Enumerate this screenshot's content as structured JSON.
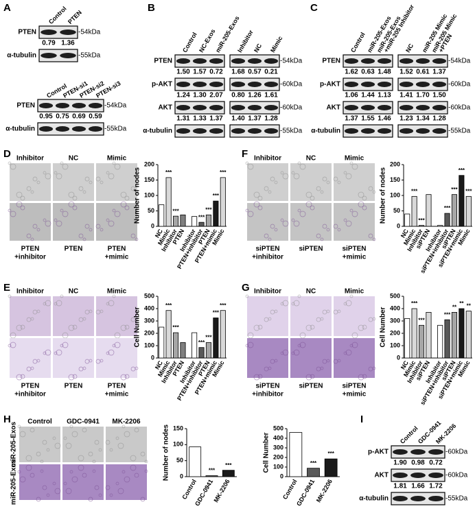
{
  "panel_labels": [
    "A",
    "B",
    "C",
    "D",
    "E",
    "F",
    "G",
    "H",
    "I"
  ],
  "blots": {
    "A1": {
      "columns": [
        [
          "Control"
        ],
        [
          "PTEN"
        ]
      ],
      "rows": [
        {
          "label": "PTEN",
          "marker": "-54kDa",
          "values": [
            "0.79",
            "1.36"
          ]
        },
        {
          "label": "α-tubulin",
          "marker": "-55kDa"
        }
      ]
    },
    "A2": {
      "columns": [
        [
          "Control"
        ],
        [
          "PTEN-si1"
        ],
        [
          "PTEN-si2"
        ],
        [
          "PTEN-si3"
        ]
      ],
      "rows": [
        {
          "label": "PTEN",
          "marker": "-54kDa",
          "values": [
            "0.95",
            "0.75",
            "0.69",
            "0.59"
          ]
        },
        {
          "label": "α-tubulin",
          "marker": "-55kDa"
        }
      ]
    },
    "B": {
      "columns": [
        [
          "Control"
        ],
        [
          "NC-Exos"
        ],
        [
          "miR-205-Exos"
        ],
        [
          "Inhibitor"
        ],
        [
          "NC"
        ],
        [
          "Mimic"
        ]
      ],
      "rows": [
        {
          "label": "PTEN",
          "marker": "-54kDa",
          "values": [
            "1.50",
            "1.57",
            "0.72",
            "1.68",
            "0.57",
            "0.21"
          ]
        },
        {
          "label": "p-AKT",
          "marker": "-60kDa",
          "values": [
            "1.24",
            "1.30",
            "2.07",
            "0.80",
            "1.26",
            "1.61"
          ]
        },
        {
          "label": "AKT",
          "marker": "-60kDa",
          "values": [
            "1.31",
            "1.33",
            "1.37",
            "1.40",
            "1.37",
            "1.28"
          ]
        },
        {
          "label": "α-tubulin",
          "marker": "-55kDa"
        }
      ]
    },
    "C": {
      "columns": [
        [
          "Control"
        ],
        [
          "miR-205-Exos"
        ],
        [
          "miR-205-Exos",
          "+miR-205 Inhibitor"
        ],
        [
          "NC"
        ],
        [
          "miR-205 Mimic"
        ],
        [
          "miR-205 Mimic",
          "+PTEN"
        ]
      ],
      "rows": [
        {
          "label": "PTEN",
          "marker": "-54kDa",
          "values": [
            "1.62",
            "0.63",
            "1.48",
            "1.52",
            "0.61",
            "1.37"
          ]
        },
        {
          "label": "p-AKT",
          "marker": "-60kDa",
          "values": [
            "1.06",
            "1.44",
            "1.13",
            "1.41",
            "1.70",
            "1.50"
          ]
        },
        {
          "label": "AKT",
          "marker": "-60kDa",
          "values": [
            "1.37",
            "1.55",
            "1.46",
            "1.23",
            "1.34",
            "1.28"
          ]
        },
        {
          "label": "α-tubulin",
          "marker": "-55kDa"
        }
      ]
    },
    "I": {
      "columns": [
        [
          "Control"
        ],
        [
          "GDC-0941"
        ],
        [
          "MK-2206"
        ]
      ],
      "rows": [
        {
          "label": "p-AKT",
          "marker": "-60kDa",
          "values": [
            "1.90",
            "0.98",
            "0.72"
          ]
        },
        {
          "label": "AKT",
          "marker": "-60kDa",
          "values": [
            "1.81",
            "1.66",
            "1.72"
          ]
        },
        {
          "label": "α-tubulin",
          "marker": "-55kDa"
        }
      ]
    }
  },
  "micrographs": {
    "D": {
      "top": [
        "Inhibitor",
        "NC",
        "Mimic"
      ],
      "bottom": [
        [
          "PTEN",
          "+inhibitor"
        ],
        [
          "PTEN"
        ],
        [
          "PTEN",
          "+mimic"
        ]
      ]
    },
    "E": {
      "top": [
        "Inhibitor",
        "NC",
        "Mimic"
      ],
      "bottom": [
        [
          "PTEN",
          "+inhibitor"
        ],
        [
          "PTEN"
        ],
        [
          "PTEN",
          "+mimic"
        ]
      ]
    },
    "F": {
      "top": [
        "Inhibitor",
        "NC",
        "Mimic"
      ],
      "bottom": [
        [
          "siPTEN",
          "+inhibitor"
        ],
        [
          "siPTEN"
        ],
        [
          "siPTEN",
          "+mimic"
        ]
      ]
    },
    "G": {
      "top": [
        "Inhibitor",
        "NC",
        "Mimic"
      ],
      "bottom": [
        [
          "siPTEN",
          "+inhibitor"
        ],
        [
          "siPTEN"
        ],
        [
          "siPTEN",
          "+mimic"
        ]
      ]
    },
    "H": {
      "top": [
        "Control",
        "GDC-0941",
        "MK-2206"
      ],
      "side": [
        "miR-205-Exos",
        "miR-205-Exos"
      ]
    }
  },
  "chart_data": [
    {
      "type": "bar",
      "ylabel": "Number of nodes",
      "categories": [
        "NC",
        "Mimic",
        "Inhibitor",
        "PTEN",
        "Inhibitor",
        "PTEN+inhibitor",
        "PTEN",
        "PTEN+mimic",
        "Mimic"
      ],
      "values": [
        70,
        158,
        33,
        37,
        32,
        13,
        37,
        82,
        158
      ],
      "colors": [
        "#ffffff",
        "#d9d9d9",
        "#a6a6a6",
        "#7f7f7f",
        "#ffffff",
        "#595959",
        "#a6a6a6",
        "#1a1a1a",
        "#d9d9d9"
      ],
      "significance": [
        null,
        "***",
        "***",
        null,
        null,
        "***",
        "***",
        "***",
        "***"
      ],
      "ylim": [
        0,
        200
      ],
      "yticks": [
        0,
        50,
        100,
        150,
        200
      ]
    },
    {
      "type": "bar",
      "ylabel": "Cell Number",
      "categories": [
        "NC",
        "Mimic",
        "Inhibitor",
        "PTEN",
        "Inhibitor",
        "PTEN+inhibitor",
        "PTEN",
        "PTEN+mimic",
        "Mimic"
      ],
      "values": [
        250,
        385,
        205,
        125,
        205,
        85,
        125,
        325,
        385
      ],
      "colors": [
        "#ffffff",
        "#d9d9d9",
        "#a6a6a6",
        "#7f7f7f",
        "#ffffff",
        "#595959",
        "#a6a6a6",
        "#1a1a1a",
        "#d9d9d9"
      ],
      "significance": [
        null,
        "***",
        "***",
        null,
        null,
        "***",
        "***",
        "***",
        "***"
      ],
      "ylim": [
        0,
        500
      ],
      "yticks": [
        0,
        100,
        200,
        300,
        400,
        500
      ]
    },
    {
      "type": "bar",
      "ylabel": "Number of nodes",
      "categories": [
        "NC",
        "Mimic",
        "Inhibitor",
        "siPTEN",
        "Inhibitor",
        "siPTEN+inhibitor",
        "siPTEN",
        "siPTEN+mimic",
        "Mimic"
      ],
      "values": [
        40,
        97,
        3,
        103,
        3,
        42,
        103,
        165,
        97
      ],
      "colors": [
        "#ffffff",
        "#d9d9d9",
        "#a6a6a6",
        "#d9d9d9",
        "#ffffff",
        "#595959",
        "#a6a6a6",
        "#1a1a1a",
        "#d9d9d9"
      ],
      "significance": [
        null,
        "***",
        "***",
        null,
        null,
        "***",
        "***",
        "***",
        "***"
      ],
      "ylim": [
        0,
        200
      ],
      "yticks": [
        0,
        50,
        100,
        150,
        200
      ]
    },
    {
      "type": "bar",
      "ylabel": "Cell Number",
      "categories": [
        "NC",
        "Mimic",
        "Inhibitor",
        "siPTEN",
        "Inhibitor",
        "siPTEN+inhibitor",
        "siPTEN",
        "siPTEN+mimic",
        "Mimic"
      ],
      "values": [
        320,
        400,
        265,
        370,
        265,
        310,
        370,
        400,
        380
      ],
      "colors": [
        "#ffffff",
        "#d9d9d9",
        "#a6a6a6",
        "#d9d9d9",
        "#ffffff",
        "#595959",
        "#a6a6a6",
        "#1a1a1a",
        "#d9d9d9"
      ],
      "significance": [
        null,
        "***",
        "***",
        null,
        null,
        "***",
        "**",
        "**",
        "**"
      ],
      "ylim": [
        0,
        500
      ],
      "yticks": [
        0,
        100,
        200,
        300,
        400,
        500
      ]
    },
    {
      "type": "bar",
      "ylabel": "Number of nodes",
      "categories": [
        "Control",
        "GDC-0941",
        "MK-2206"
      ],
      "values": [
        93,
        3,
        20
      ],
      "colors": [
        "#ffffff",
        "#595959",
        "#1a1a1a"
      ],
      "significance": [
        null,
        "***",
        "***"
      ],
      "ylim": [
        0,
        150
      ],
      "yticks": [
        0,
        50,
        100,
        150
      ]
    },
    {
      "type": "bar",
      "ylabel": "Cell Number",
      "categories": [
        "Control",
        "GDC-0941",
        "MK-2206"
      ],
      "values": [
        460,
        88,
        185
      ],
      "colors": [
        "#ffffff",
        "#595959",
        "#1a1a1a"
      ],
      "significance": [
        null,
        "***",
        "***"
      ],
      "ylim": [
        0,
        500
      ],
      "yticks": [
        0,
        100,
        200,
        300,
        400,
        500
      ]
    }
  ]
}
